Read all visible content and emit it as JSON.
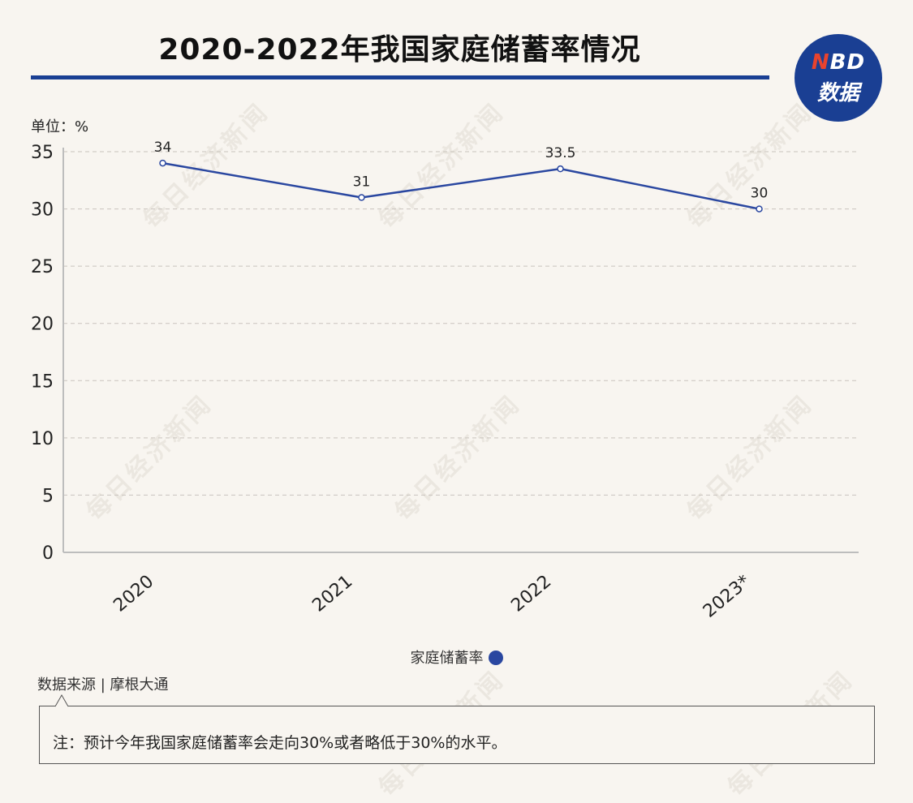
{
  "title": "2020-2022年我国家庭储蓄率情况",
  "logo": {
    "top_n": "N",
    "top_rest": "BD",
    "bottom": "数据"
  },
  "unit_label": "单位：%",
  "legend_label": "家庭储蓄率",
  "source_text": "数据来源 | 摩根大通",
  "note_text": "注：预计今年我国家庭储蓄率会走向30%或者略低于30%的水平。",
  "watermark_text": "每日经济新闻",
  "colors": {
    "accent": "#1a3f93",
    "background": "#f8f5f0",
    "line": "#2a47a0"
  },
  "chart_data": {
    "type": "line",
    "categories": [
      "2020",
      "2021",
      "2022",
      "2023*"
    ],
    "series": [
      {
        "name": "家庭储蓄率",
        "values": [
          34,
          31,
          33.5,
          30
        ],
        "color": "#2a47a0"
      }
    ],
    "data_labels": [
      "34",
      "31",
      "33.5",
      "30"
    ],
    "ylim": [
      0,
      35
    ],
    "yticks": [
      0,
      5,
      10,
      15,
      20,
      25,
      30,
      35
    ],
    "grid": true,
    "legend_position": "bottom"
  }
}
